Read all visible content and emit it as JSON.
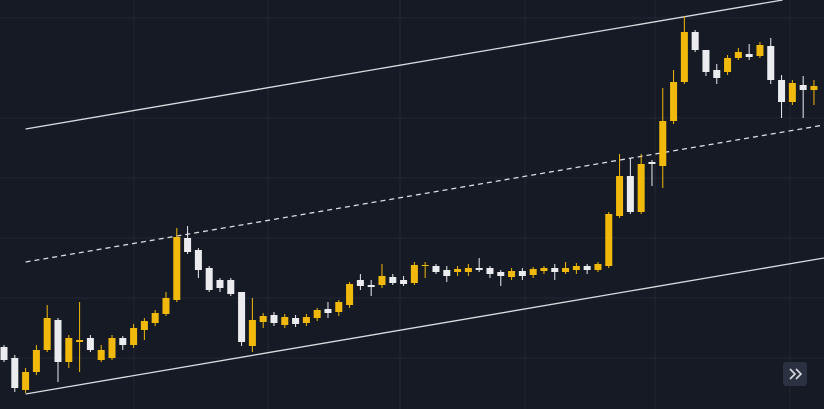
{
  "chart_data": {
    "type": "candlestick",
    "xlim": [
      -0.37,
      75.93
    ],
    "ylim": [
      0,
      409
    ],
    "grid": true,
    "up_color": "#f0b90b",
    "down_color": "#eaecef",
    "open": [
      62,
      51,
      19,
      37,
      59,
      89,
      47,
      67,
      71,
      49,
      51,
      71,
      64,
      79,
      86,
      95,
      109,
      171,
      159,
      141,
      129,
      129,
      117,
      63,
      87,
      94,
      84,
      91,
      86,
      91,
      100,
      97,
      104,
      129,
      124,
      124,
      132,
      129,
      126,
      143,
      143,
      139,
      137,
      137,
      141,
      141,
      137,
      132,
      138,
      134,
      138,
      141,
      137,
      139,
      143,
      139,
      143,
      193,
      233,
      197,
      247,
      243,
      288,
      327,
      377,
      359,
      339,
      337,
      351,
      355,
      353,
      363,
      329,
      307,
      324,
      319
    ],
    "high": [
      64,
      54,
      41,
      64,
      104,
      91,
      74,
      107,
      74,
      64,
      74,
      73,
      85,
      91,
      99,
      117,
      181,
      183,
      161,
      143,
      131,
      131,
      117,
      111,
      96,
      97,
      95,
      94,
      95,
      101,
      107,
      109,
      127,
      135,
      129,
      145,
      135,
      133,
      147,
      147,
      145,
      143,
      143,
      145,
      151,
      143,
      139,
      141,
      141,
      142,
      143,
      145,
      147,
      146,
      145,
      147,
      197,
      255,
      251,
      255,
      249,
      321,
      339,
      393,
      379,
      359,
      345,
      354,
      361,
      365,
      367,
      371,
      334,
      329,
      333,
      329
    ],
    "low": [
      47,
      17,
      16,
      34,
      57,
      27,
      41,
      37,
      57,
      47,
      49,
      59,
      61,
      69,
      83,
      93,
      107,
      155,
      131,
      117,
      117,
      113,
      63,
      57,
      81,
      83,
      81,
      82,
      83,
      88,
      91,
      93,
      101,
      119,
      113,
      121,
      124,
      123,
      124,
      131,
      135,
      127,
      133,
      133,
      137,
      131,
      123,
      129,
      129,
      131,
      135,
      129,
      135,
      135,
      135,
      137,
      141,
      191,
      195,
      195,
      223,
      221,
      285,
      325,
      357,
      333,
      325,
      334,
      349,
      349,
      351,
      325,
      291,
      304,
      291,
      304
    ],
    "close": [
      49,
      21,
      37,
      59,
      91,
      47,
      71,
      69,
      59,
      59,
      71,
      64,
      81,
      88,
      96,
      111,
      172,
      157,
      139,
      119,
      121,
      115,
      67,
      89,
      93,
      86,
      92,
      85,
      92,
      99,
      96,
      107,
      125,
      123,
      122,
      133,
      126,
      125,
      144,
      144,
      137,
      133,
      140,
      141,
      139,
      135,
      133,
      138,
      133,
      140,
      141,
      137,
      141,
      143,
      139,
      145,
      195,
      233,
      197,
      245,
      245,
      288,
      327,
      377,
      359,
      337,
      331,
      351,
      357,
      352,
      364,
      329,
      307,
      326,
      319,
      323
    ],
    "trendlines": [
      {
        "x": [
          2,
          72.1
        ],
        "values": [
          280,
          409
        ],
        "style": "solid",
        "color": "#d9dbe0"
      },
      {
        "x": [
          2,
          75.93
        ],
        "values": [
          147,
          284
        ],
        "style": "dashed",
        "color": "#d9dbe0"
      },
      {
        "x": [
          2,
          75.93
        ],
        "values": [
          15,
          151
        ],
        "style": "solid",
        "color": "#d9dbe0"
      }
    ]
  }
}
